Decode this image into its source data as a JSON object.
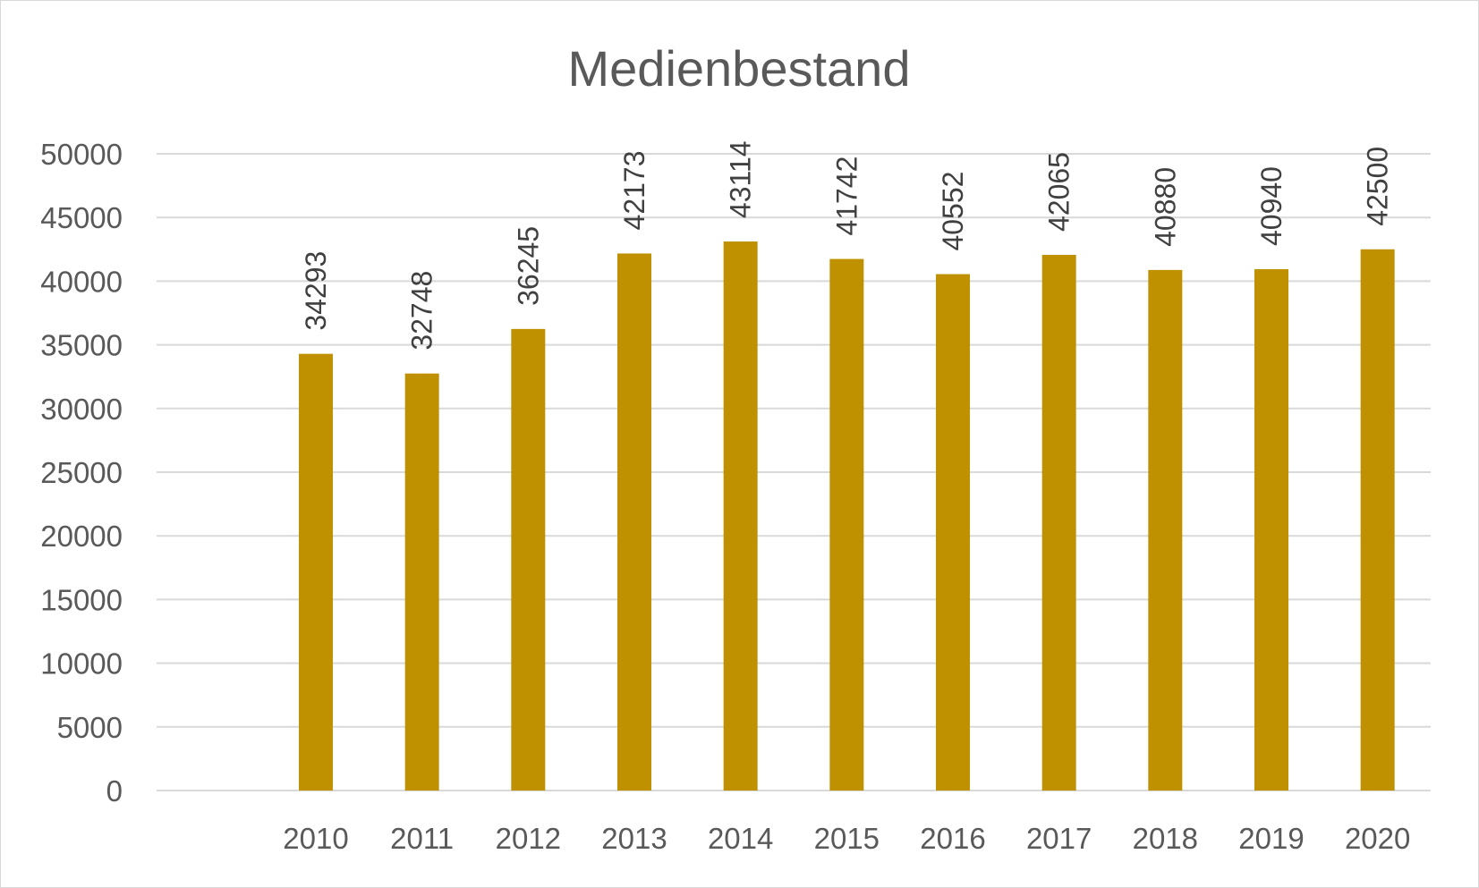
{
  "chart_data": {
    "type": "bar",
    "title": "Medienbestand",
    "categories": [
      "",
      "2010",
      "2011",
      "2012",
      "2013",
      "2014",
      "2015",
      "2016",
      "2017",
      "2018",
      "2019",
      "2020"
    ],
    "values": [
      null,
      34293,
      32748,
      36245,
      42173,
      43114,
      41742,
      40552,
      42065,
      40880,
      40940,
      42500
    ],
    "value_labels": [
      "",
      "34293",
      "32748",
      "36245",
      "42173",
      "43114",
      "41742",
      "40552",
      "42065",
      "40880",
      "40940",
      "42500"
    ],
    "y_ticks": [
      "0",
      "5000",
      "10000",
      "15000",
      "20000",
      "25000",
      "30000",
      "35000",
      "40000",
      "45000",
      "50000"
    ],
    "ylim": [
      0,
      50000
    ],
    "grid": true,
    "legend": "none",
    "bar_color": "#bf9000",
    "xlabel": "",
    "ylabel": ""
  }
}
